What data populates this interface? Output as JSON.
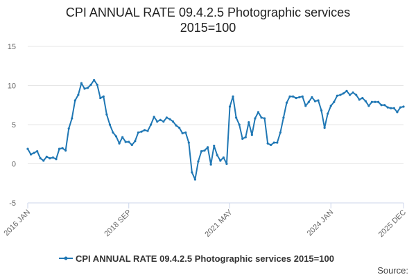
{
  "chart_data": {
    "type": "line",
    "title_line1": "CPI ANNUAL RATE 09.4.2.5 Photographic services",
    "title_line2": "2015=100",
    "xlabel": "",
    "ylabel": "",
    "ylim": [
      -5,
      15
    ],
    "y_ticks": [
      "15",
      "10",
      "5",
      "0",
      "-5"
    ],
    "x_tick_labels": [
      "2016 JAN",
      "2018 SEP",
      "2021 MAY",
      "2024 JAN",
      "2025 DEC"
    ],
    "x_tick_index": [
      0,
      32,
      64,
      96,
      119
    ],
    "grid": true,
    "legend": "bottom",
    "source_label": "Source:",
    "color": "#1f77b4",
    "series": [
      {
        "name": "CPI ANNUAL RATE 09.4.2.5 Photographic services 2015=100",
        "values": [
          1.9,
          1.2,
          1.4,
          1.6,
          0.7,
          0.4,
          0.9,
          0.7,
          0.8,
          0.6,
          1.9,
          2.0,
          1.7,
          4.5,
          5.8,
          8.1,
          8.8,
          10.3,
          9.6,
          9.7,
          10.1,
          10.7,
          10.1,
          8.4,
          8.6,
          6.3,
          5.0,
          4.0,
          3.5,
          2.6,
          3.4,
          2.8,
          2.8,
          2.4,
          2.9,
          4.0,
          4.1,
          4.3,
          4.2,
          5.0,
          6.0,
          5.4,
          5.6,
          5.4,
          5.9,
          5.7,
          5.4,
          4.9,
          4.6,
          3.9,
          4.0,
          2.7,
          -1.1,
          -2.0,
          0.3,
          1.6,
          1.7,
          2.1,
          -0.1,
          2.3,
          1.1,
          0.4,
          0.8,
          0.0,
          7.3,
          8.6,
          5.9,
          5.0,
          3.2,
          3.4,
          5.3,
          3.7,
          5.8,
          6.6,
          5.9,
          5.8,
          2.6,
          2.4,
          2.7,
          2.7,
          4.0,
          5.9,
          7.8,
          8.6,
          8.6,
          8.4,
          8.5,
          8.6,
          7.4,
          7.9,
          8.5,
          8.0,
          8.1,
          6.8,
          4.6,
          6.4,
          7.4,
          7.9,
          8.7,
          8.8,
          9.0,
          9.3,
          8.8,
          9.1,
          8.8,
          8.2,
          8.4,
          8.0,
          7.4,
          7.9,
          7.9,
          7.9,
          7.5,
          7.5,
          7.2,
          7.1,
          7.1,
          6.6,
          7.2,
          7.3
        ]
      }
    ]
  }
}
